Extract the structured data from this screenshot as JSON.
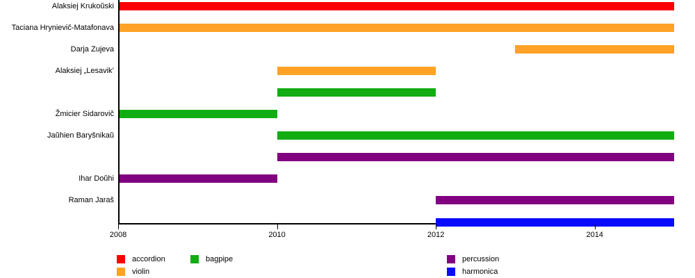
{
  "chart_data": {
    "type": "bar",
    "subtype": "horizontal-timeline-gantt",
    "title": "",
    "xlabel": "",
    "ylabel": "",
    "x_axis": {
      "min": 2008,
      "max": 2015,
      "ticks": [
        2008,
        2010,
        2012,
        2014
      ]
    },
    "colors": {
      "accordion": "#fa0000",
      "violin": "#ffa226",
      "bagpipe": "#12ad12",
      "percussion": "#800080",
      "harmonica": "#0a0aff"
    },
    "rows": [
      {
        "label": "Alaksiej Krukoŭski",
        "instrument": "accordion",
        "start": 2008,
        "end": 2015
      },
      {
        "label": "Taciana Hrynievič-Matafonava",
        "instrument": "violin",
        "start": 2008,
        "end": 2015
      },
      {
        "label": "Darja Zujeva",
        "instrument": "violin",
        "start": 2013,
        "end": 2015
      },
      {
        "label": "Alaksiej „Lesavik’",
        "instrument": "violin",
        "start": 2010,
        "end": 2012
      },
      {
        "label": "",
        "instrument": "bagpipe",
        "start": 2010,
        "end": 2012
      },
      {
        "label": "Žmicier Sidarovič",
        "instrument": "bagpipe",
        "start": 2008,
        "end": 2010
      },
      {
        "label": "Jaŭhien Baryšnikaŭ",
        "instrument": "bagpipe",
        "start": 2010,
        "end": 2015
      },
      {
        "label": "",
        "instrument": "percussion",
        "start": 2010,
        "end": 2015
      },
      {
        "label": "Ihar Doŭhi",
        "instrument": "percussion",
        "start": 2008,
        "end": 2010
      },
      {
        "label": "Raman Jaraš",
        "instrument": "percussion",
        "start": 2012,
        "end": 2015
      },
      {
        "label": "",
        "instrument": "harmonica",
        "start": 2012,
        "end": 2015
      }
    ],
    "legend": {
      "position": "bottom",
      "columns": [
        {
          "items": [
            {
              "label": "accordion",
              "color": "#fa0000"
            },
            {
              "label": "violin",
              "color": "#ffa226"
            }
          ]
        },
        {
          "items": [
            {
              "label": "bagpipe",
              "color": "#12ad12"
            }
          ]
        },
        {
          "items": [
            {
              "label": "percussion",
              "color": "#800080"
            },
            {
              "label": "harmonica",
              "color": "#0a0aff"
            }
          ]
        }
      ]
    }
  }
}
